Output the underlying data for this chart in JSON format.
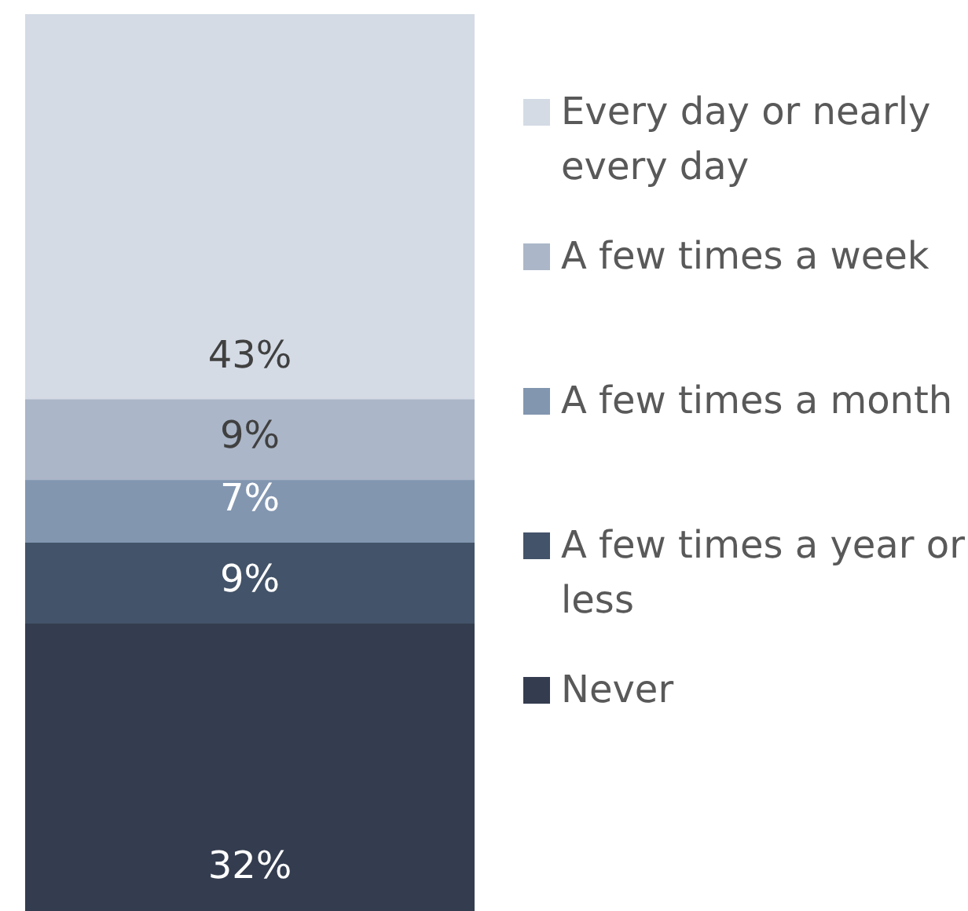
{
  "chart_data": {
    "type": "bar",
    "stacked": true,
    "categories": [
      null
    ],
    "legend": "right",
    "series": [
      {
        "name": "Never",
        "color": "#343d4f",
        "values": [
          32
        ],
        "value_labels": [
          "32%"
        ]
      },
      {
        "name": "A few times a year or less",
        "color": "#435369",
        "values": [
          9
        ],
        "value_labels": [
          "9%"
        ]
      },
      {
        "name": "A few times a month",
        "color": "#8296b0",
        "values": [
          7
        ],
        "value_labels": [
          "7%"
        ]
      },
      {
        "name": "A few times a week",
        "color": "#abb6c8",
        "values": [
          9
        ],
        "value_labels": [
          "9%"
        ]
      },
      {
        "name": "Every day or nearly every day",
        "color": "#d4dbe5",
        "values": [
          43
        ],
        "value_labels": [
          "43%"
        ]
      }
    ]
  }
}
